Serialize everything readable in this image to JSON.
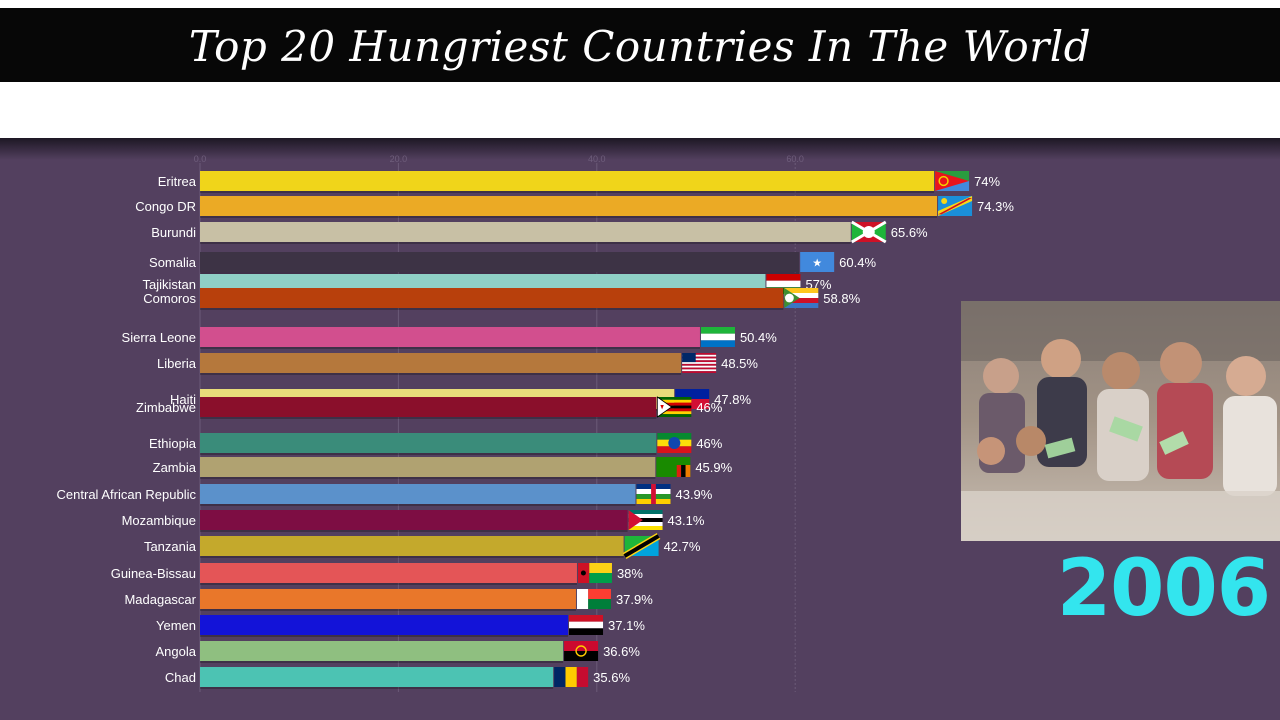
{
  "title": "Top 20 Hungriest Countries In The World",
  "year": "2006",
  "chart_data": {
    "type": "bar",
    "orientation": "horizontal",
    "title": "Top 20 Hungriest Countries In The World",
    "unit": "%",
    "bars": [
      {
        "name": "Eritrea",
        "value": 74,
        "label": "74%",
        "color": "#f0d51a",
        "flag": "eritrea"
      },
      {
        "name": "Congo DR",
        "value": 74.3,
        "label": "74.3%",
        "color": "#ebaa25",
        "flag": "congo-dr"
      },
      {
        "name": "Burundi",
        "value": 65.6,
        "label": "65.6%",
        "color": "#c8c0a5",
        "flag": "burundi"
      },
      {
        "name": "Somalia",
        "value": 60.4,
        "label": "60.4%",
        "color": "#3d3345",
        "flag": "somalia"
      },
      {
        "name": "Tajikistan",
        "value": 57,
        "label": "57%",
        "color": "#8fd0c6",
        "flag": "tajikistan"
      },
      {
        "name": "Comoros",
        "value": 58.8,
        "label": "58.8%",
        "color": "#b8400c",
        "flag": "comoros"
      },
      {
        "name": "Sierra Leone",
        "value": 50.4,
        "label": "50.4%",
        "color": "#d24f8e",
        "flag": "sierra-leone"
      },
      {
        "name": "Liberia",
        "value": 48.5,
        "label": "48.5%",
        "color": "#b5783c",
        "flag": "liberia"
      },
      {
        "name": "Haiti",
        "value": 47.8,
        "label": "47.8%",
        "color": "#e8dc7a",
        "flag": "haiti"
      },
      {
        "name": "Zimbabwe",
        "value": 46,
        "label": "46%",
        "color": "#8a0f2b",
        "flag": "zimbabwe"
      },
      {
        "name": "Ethiopia",
        "value": 46,
        "label": "46%",
        "color": "#3a8c7a",
        "flag": "ethiopia"
      },
      {
        "name": "Zambia",
        "value": 45.9,
        "label": "45.9%",
        "color": "#b0a271",
        "flag": "zambia"
      },
      {
        "name": "Central African Republic",
        "value": 43.9,
        "label": "43.9%",
        "color": "#5b91cb",
        "flag": "car"
      },
      {
        "name": "Mozambique",
        "value": 43.1,
        "label": "43.1%",
        "color": "#7d0d43",
        "flag": "mozambique"
      },
      {
        "name": "Tanzania",
        "value": 42.7,
        "label": "42.7%",
        "color": "#c4a92c",
        "flag": "tanzania"
      },
      {
        "name": "Guinea-Bissau",
        "value": 38,
        "label": "38%",
        "color": "#e45557",
        "flag": "guinea-bissau"
      },
      {
        "name": "Madagascar",
        "value": 37.9,
        "label": "37.9%",
        "color": "#e9772a",
        "flag": "madagascar"
      },
      {
        "name": "Yemen",
        "value": 37.1,
        "label": "37.1%",
        "color": "#1313d8",
        "flag": "yemen"
      },
      {
        "name": "Angola",
        "value": 36.6,
        "label": "36.6%",
        "color": "#8fbf80",
        "flag": "angola"
      },
      {
        "name": "Chad",
        "value": 35.6,
        "label": "35.6%",
        "color": "#4cc3b3",
        "flag": "chad"
      }
    ],
    "x_ticks": [
      0,
      20,
      40,
      60
    ],
    "x_range": [
      0,
      75
    ],
    "grid": true,
    "legend": "none"
  },
  "photo": {
    "description_icon": "photo-hungry-children"
  }
}
